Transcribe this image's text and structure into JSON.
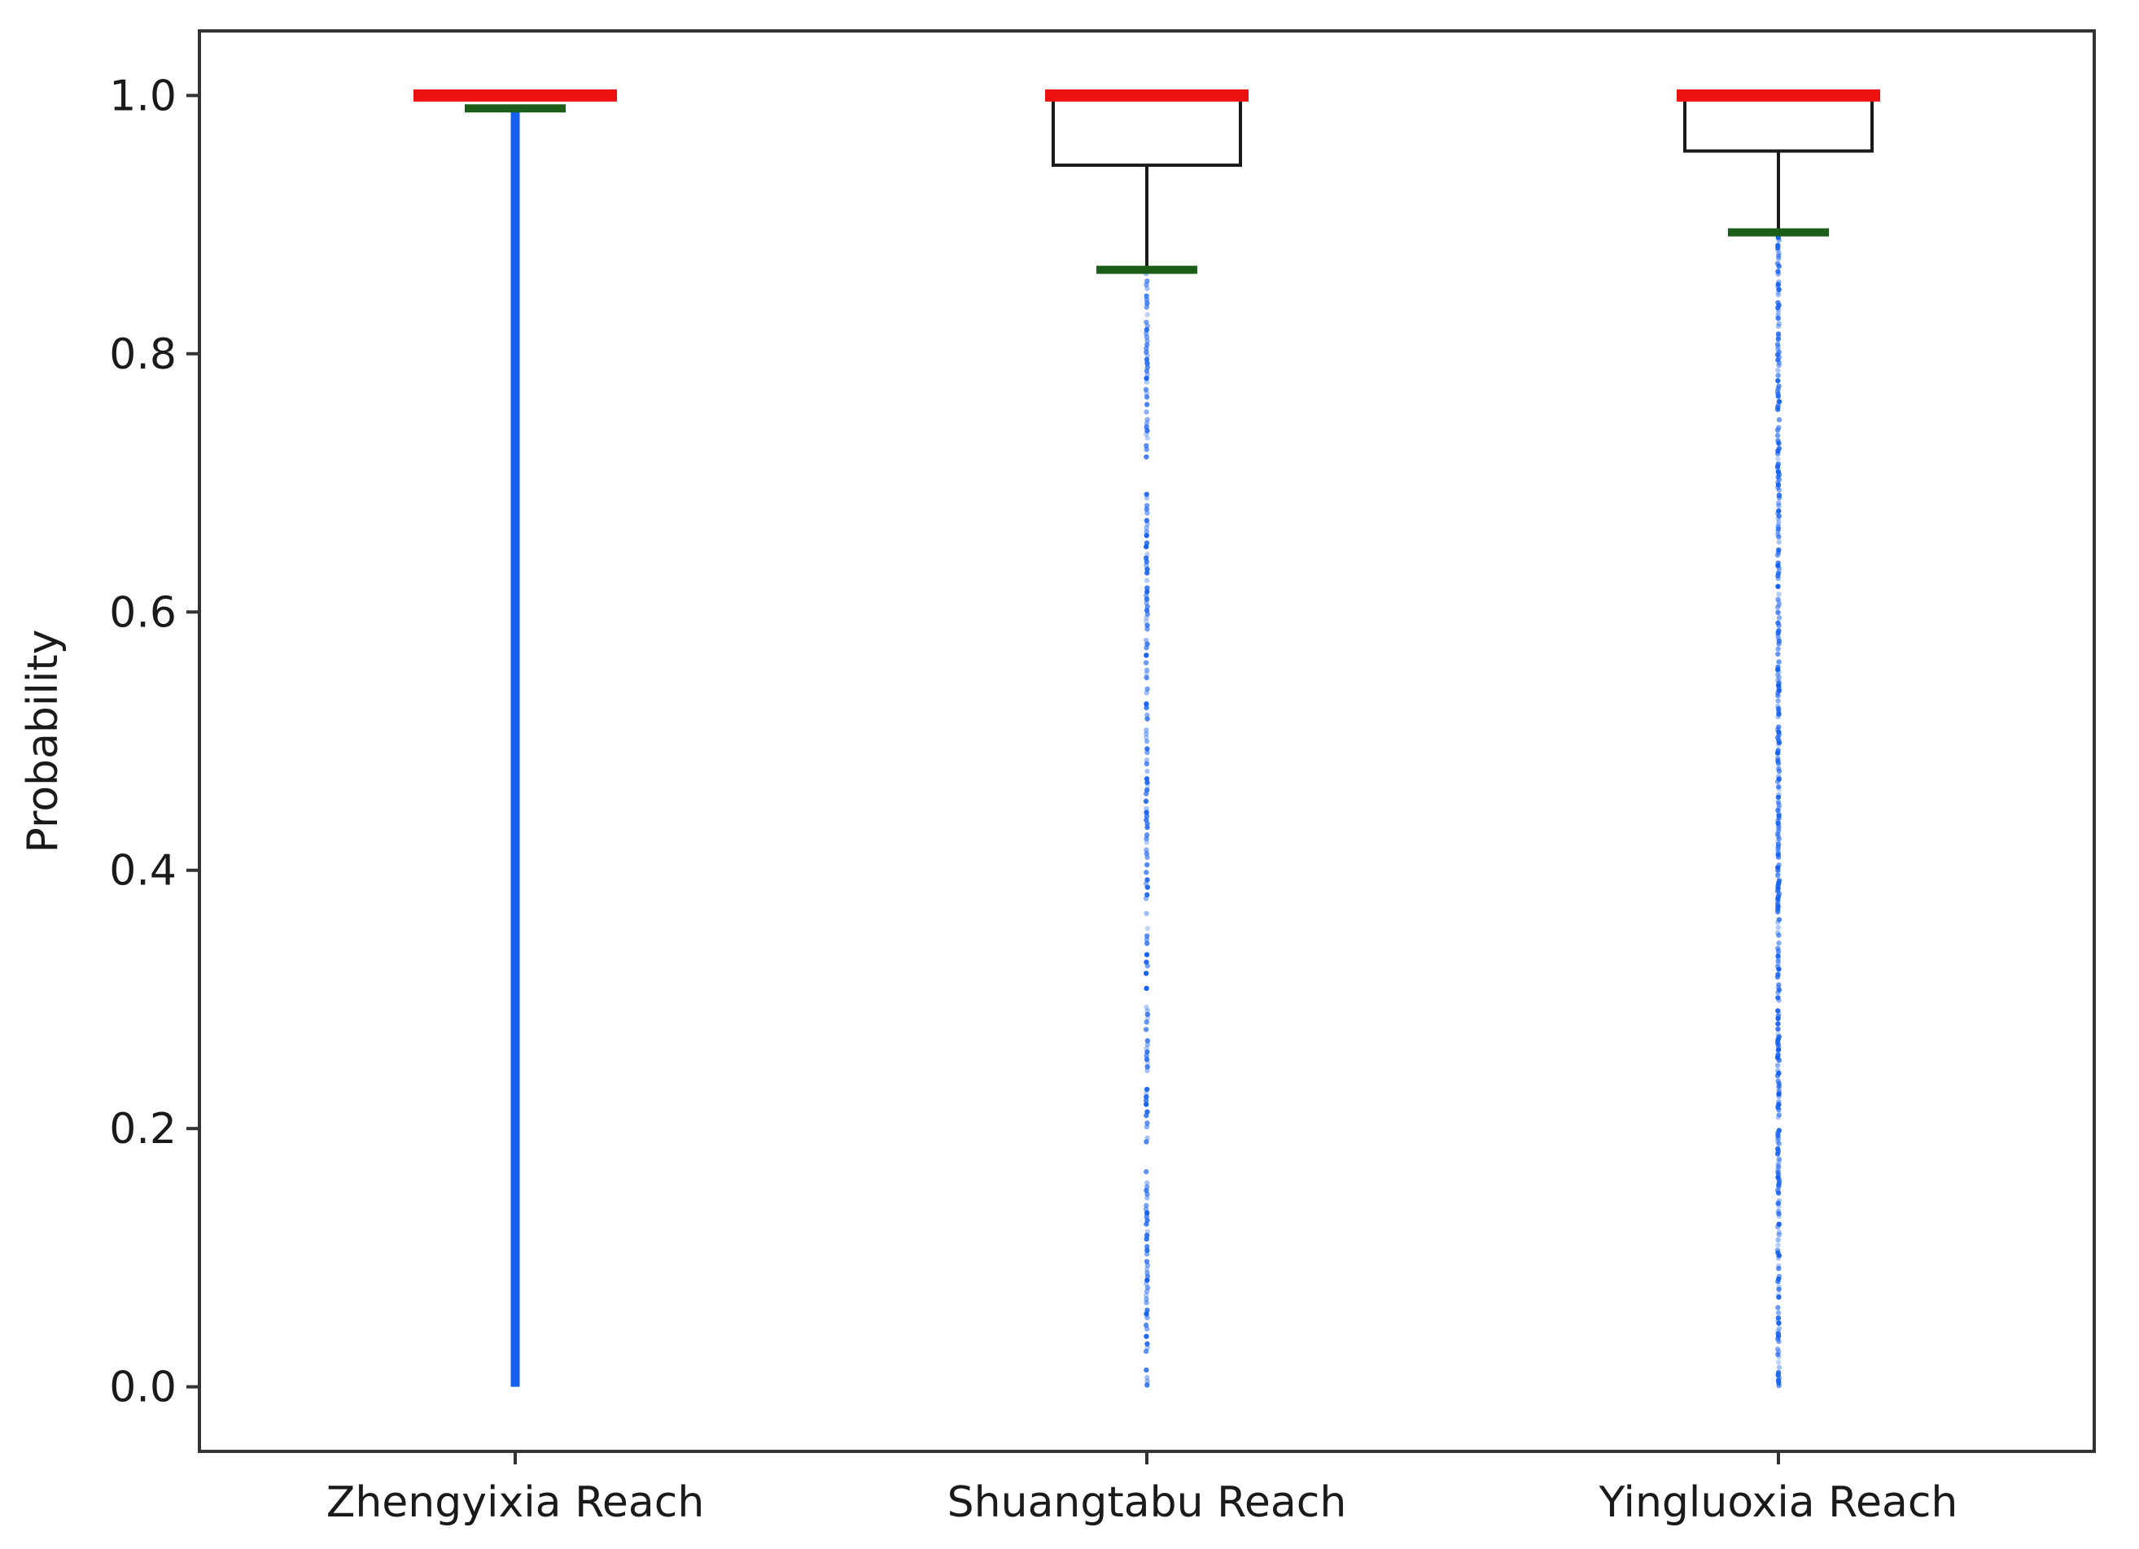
{
  "chart_data": {
    "type": "box",
    "ylabel": "Probability",
    "xlabel": "",
    "ylim": [
      -0.05,
      1.05
    ],
    "yticks": [
      "0.0",
      "0.2",
      "0.4",
      "0.6",
      "0.8",
      "1.0"
    ],
    "grid": false,
    "categories": [
      "Zhengyixia Reach",
      "Shuangtabu Reach",
      "Yingluoxia Reach"
    ],
    "boxes": [
      {
        "category": "Zhengyixia Reach",
        "q1": 1.0,
        "median": 1.0,
        "q3": 1.0,
        "whisker_low": 0.99,
        "whisker_high": 1.0,
        "outlier_range": [
          0.0,
          0.99
        ],
        "outlier_style": "dense"
      },
      {
        "category": "Shuangtabu Reach",
        "q1": 0.946,
        "median": 1.0,
        "q3": 1.0,
        "whisker_low": 0.865,
        "whisker_high": 1.0,
        "outlier_range": [
          0.0,
          0.865
        ],
        "outlier_style": "sparse"
      },
      {
        "category": "Yingluoxia Reach",
        "q1": 0.957,
        "median": 1.0,
        "q3": 1.0,
        "whisker_low": 0.894,
        "whisker_high": 1.0,
        "outlier_range": [
          0.0,
          0.894
        ],
        "outlier_style": "medium"
      }
    ],
    "colors": {
      "median": "#ee1111",
      "whisker_cap": "#1a5e1a",
      "outliers": "#1560ee",
      "box": "#1a1a1a",
      "frame": "#333333"
    }
  }
}
